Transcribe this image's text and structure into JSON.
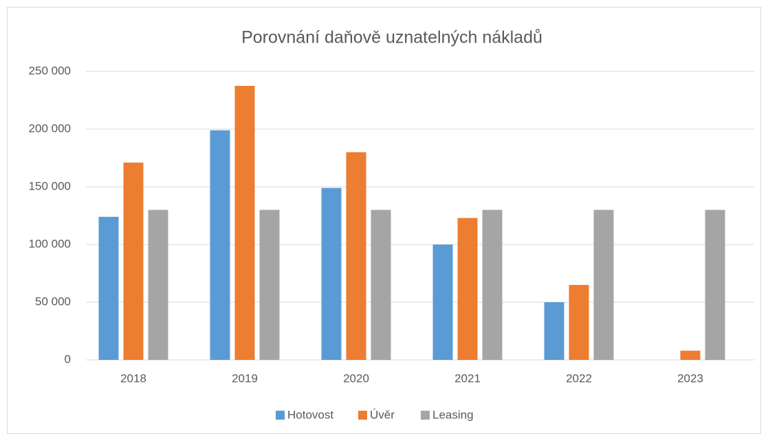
{
  "chart_data": {
    "type": "bar",
    "title": "Porovnání daňově uznatelných nákladů",
    "categories": [
      "2018",
      "2019",
      "2020",
      "2021",
      "2022",
      "2023"
    ],
    "series": [
      {
        "name": "Hotovost",
        "color": "#5b9bd5",
        "values": [
          124000,
          199000,
          149000,
          100000,
          50000,
          0
        ]
      },
      {
        "name": "Úvěr",
        "color": "#ed7d31",
        "values": [
          171000,
          237500,
          180000,
          123000,
          65000,
          8000
        ]
      },
      {
        "name": "Leasing",
        "color": "#a5a5a5",
        "values": [
          130000,
          130000,
          130000,
          130000,
          130000,
          130000
        ]
      }
    ],
    "ylim": [
      0,
      250000
    ],
    "yticks": [
      0,
      {
        "value": 50000,
        "label": "50 000"
      },
      {
        "value": 100000,
        "label": "100 000"
      },
      {
        "value": 150000,
        "label": "150 000"
      },
      {
        "value": 200000,
        "label": "200 000"
      },
      {
        "value": 250000,
        "label": "250 000"
      }
    ],
    "grid": true,
    "legend": "bottom"
  }
}
